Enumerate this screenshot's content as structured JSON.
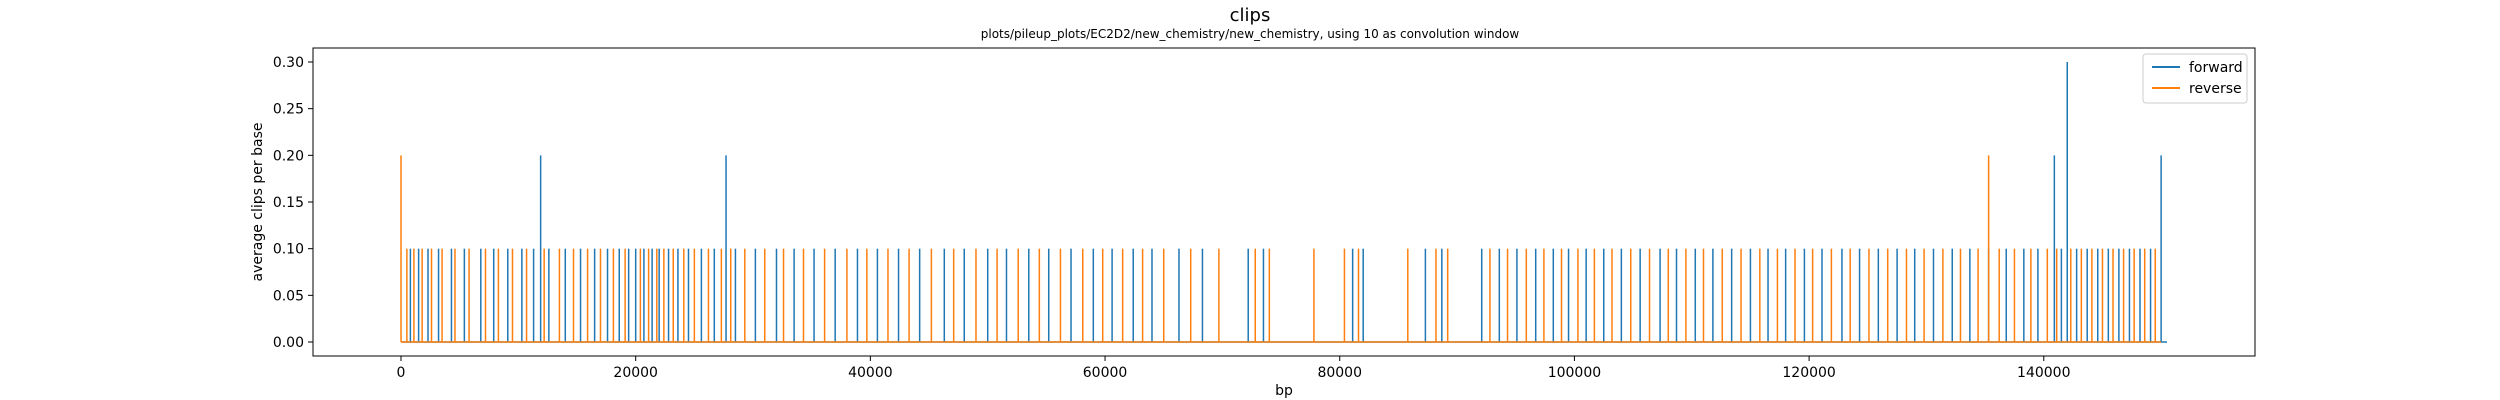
{
  "chart_data": {
    "type": "line",
    "title": "clips",
    "subtitle": "plots/pileup_plots/EC2D2/new_chemistry/new_chemistry, using 10 as convolution window",
    "xlabel": "bp",
    "ylabel": "average clips per base",
    "xlim": [
      -7500,
      158000
    ],
    "ylim": [
      -0.015,
      0.315
    ],
    "xticks": [
      0,
      20000,
      40000,
      60000,
      80000,
      100000,
      120000,
      140000
    ],
    "yticks": [
      0.0,
      0.05,
      0.1,
      0.15,
      0.2,
      0.25,
      0.3
    ],
    "ytick_labels": [
      "0.00",
      "0.05",
      "0.10",
      "0.15",
      "0.20",
      "0.25",
      "0.30"
    ],
    "legend_position": "top-right",
    "colors": {
      "forward": "#1f77b4",
      "reverse": "#ff7f0e"
    },
    "series": [
      {
        "name": "forward",
        "x_range": [
          0,
          150500
        ],
        "spikes": [
          {
            "x": 800,
            "y": 0.1
          },
          {
            "x": 1500,
            "y": 0.1
          },
          {
            "x": 2300,
            "y": 0.1
          },
          {
            "x": 3200,
            "y": 0.1
          },
          {
            "x": 4300,
            "y": 0.1
          },
          {
            "x": 5400,
            "y": 0.1
          },
          {
            "x": 6800,
            "y": 0.1
          },
          {
            "x": 7900,
            "y": 0.1
          },
          {
            "x": 9100,
            "y": 0.1
          },
          {
            "x": 10300,
            "y": 0.1
          },
          {
            "x": 11300,
            "y": 0.1
          },
          {
            "x": 11900,
            "y": 0.2
          },
          {
            "x": 12600,
            "y": 0.1
          },
          {
            "x": 14000,
            "y": 0.1
          },
          {
            "x": 15300,
            "y": 0.1
          },
          {
            "x": 16500,
            "y": 0.1
          },
          {
            "x": 17600,
            "y": 0.1
          },
          {
            "x": 18600,
            "y": 0.1
          },
          {
            "x": 19400,
            "y": 0.1
          },
          {
            "x": 20000,
            "y": 0.1
          },
          {
            "x": 20700,
            "y": 0.1
          },
          {
            "x": 21400,
            "y": 0.1
          },
          {
            "x": 22000,
            "y": 0.1
          },
          {
            "x": 22800,
            "y": 0.1
          },
          {
            "x": 23600,
            "y": 0.1
          },
          {
            "x": 24500,
            "y": 0.1
          },
          {
            "x": 25600,
            "y": 0.1
          },
          {
            "x": 26700,
            "y": 0.1
          },
          {
            "x": 27700,
            "y": 0.2
          },
          {
            "x": 28500,
            "y": 0.1
          },
          {
            "x": 30200,
            "y": 0.1
          },
          {
            "x": 32000,
            "y": 0.1
          },
          {
            "x": 33500,
            "y": 0.1
          },
          {
            "x": 35200,
            "y": 0.1
          },
          {
            "x": 37000,
            "y": 0.1
          },
          {
            "x": 38900,
            "y": 0.1
          },
          {
            "x": 40600,
            "y": 0.1
          },
          {
            "x": 42400,
            "y": 0.1
          },
          {
            "x": 44200,
            "y": 0.1
          },
          {
            "x": 46300,
            "y": 0.1
          },
          {
            "x": 48000,
            "y": 0.1
          },
          {
            "x": 50000,
            "y": 0.1
          },
          {
            "x": 51600,
            "y": 0.1
          },
          {
            "x": 53500,
            "y": 0.1
          },
          {
            "x": 55200,
            "y": 0.1
          },
          {
            "x": 57100,
            "y": 0.1
          },
          {
            "x": 59000,
            "y": 0.1
          },
          {
            "x": 60600,
            "y": 0.1
          },
          {
            "x": 62400,
            "y": 0.1
          },
          {
            "x": 64000,
            "y": 0.1
          },
          {
            "x": 66300,
            "y": 0.1
          },
          {
            "x": 68300,
            "y": 0.1
          },
          {
            "x": 72200,
            "y": 0.1
          },
          {
            "x": 73500,
            "y": 0.1
          },
          {
            "x": 81100,
            "y": 0.1
          },
          {
            "x": 82000,
            "y": 0.1
          },
          {
            "x": 87300,
            "y": 0.1
          },
          {
            "x": 88700,
            "y": 0.1
          },
          {
            "x": 92100,
            "y": 0.1
          },
          {
            "x": 93600,
            "y": 0.1
          },
          {
            "x": 95100,
            "y": 0.1
          },
          {
            "x": 96700,
            "y": 0.1
          },
          {
            "x": 98200,
            "y": 0.1
          },
          {
            "x": 99500,
            "y": 0.1
          },
          {
            "x": 101000,
            "y": 0.1
          },
          {
            "x": 102500,
            "y": 0.1
          },
          {
            "x": 104000,
            "y": 0.1
          },
          {
            "x": 105600,
            "y": 0.1
          },
          {
            "x": 107300,
            "y": 0.1
          },
          {
            "x": 108700,
            "y": 0.1
          },
          {
            "x": 110300,
            "y": 0.1
          },
          {
            "x": 111800,
            "y": 0.1
          },
          {
            "x": 113400,
            "y": 0.1
          },
          {
            "x": 115000,
            "y": 0.1
          },
          {
            "x": 116500,
            "y": 0.1
          },
          {
            "x": 118000,
            "y": 0.1
          },
          {
            "x": 119600,
            "y": 0.1
          },
          {
            "x": 121100,
            "y": 0.1
          },
          {
            "x": 122800,
            "y": 0.1
          },
          {
            "x": 124300,
            "y": 0.1
          },
          {
            "x": 125900,
            "y": 0.1
          },
          {
            "x": 127500,
            "y": 0.1
          },
          {
            "x": 129000,
            "y": 0.1
          },
          {
            "x": 130600,
            "y": 0.1
          },
          {
            "x": 132200,
            "y": 0.1
          },
          {
            "x": 133700,
            "y": 0.1
          },
          {
            "x": 135300,
            "y": 0.1
          },
          {
            "x": 136800,
            "y": 0.1
          },
          {
            "x": 138300,
            "y": 0.1
          },
          {
            "x": 139500,
            "y": 0.1
          },
          {
            "x": 140900,
            "y": 0.2
          },
          {
            "x": 141500,
            "y": 0.1
          },
          {
            "x": 142000,
            "y": 0.3
          },
          {
            "x": 142800,
            "y": 0.1
          },
          {
            "x": 143700,
            "y": 0.1
          },
          {
            "x": 144600,
            "y": 0.1
          },
          {
            "x": 145500,
            "y": 0.1
          },
          {
            "x": 146400,
            "y": 0.1
          },
          {
            "x": 147300,
            "y": 0.1
          },
          {
            "x": 148200,
            "y": 0.1
          },
          {
            "x": 149100,
            "y": 0.1
          },
          {
            "x": 150000,
            "y": 0.2
          }
        ]
      },
      {
        "name": "reverse",
        "x_range": [
          0,
          150000
        ],
        "spikes": [
          {
            "x": 0,
            "y": 0.2
          },
          {
            "x": 500,
            "y": 0.1
          },
          {
            "x": 1100,
            "y": 0.1
          },
          {
            "x": 1800,
            "y": 0.1
          },
          {
            "x": 2600,
            "y": 0.1
          },
          {
            "x": 3500,
            "y": 0.1
          },
          {
            "x": 4600,
            "y": 0.1
          },
          {
            "x": 5800,
            "y": 0.1
          },
          {
            "x": 7200,
            "y": 0.1
          },
          {
            "x": 8300,
            "y": 0.1
          },
          {
            "x": 9500,
            "y": 0.1
          },
          {
            "x": 10700,
            "y": 0.1
          },
          {
            "x": 12200,
            "y": 0.1
          },
          {
            "x": 13500,
            "y": 0.1
          },
          {
            "x": 14700,
            "y": 0.1
          },
          {
            "x": 15900,
            "y": 0.1
          },
          {
            "x": 17000,
            "y": 0.1
          },
          {
            "x": 18100,
            "y": 0.1
          },
          {
            "x": 19100,
            "y": 0.1
          },
          {
            "x": 20400,
            "y": 0.1
          },
          {
            "x": 21100,
            "y": 0.1
          },
          {
            "x": 21800,
            "y": 0.1
          },
          {
            "x": 22400,
            "y": 0.1
          },
          {
            "x": 23200,
            "y": 0.1
          },
          {
            "x": 24100,
            "y": 0.1
          },
          {
            "x": 25000,
            "y": 0.1
          },
          {
            "x": 26200,
            "y": 0.1
          },
          {
            "x": 27300,
            "y": 0.1
          },
          {
            "x": 28100,
            "y": 0.1
          },
          {
            "x": 29300,
            "y": 0.1
          },
          {
            "x": 31000,
            "y": 0.1
          },
          {
            "x": 32600,
            "y": 0.1
          },
          {
            "x": 34300,
            "y": 0.1
          },
          {
            "x": 36100,
            "y": 0.1
          },
          {
            "x": 38000,
            "y": 0.1
          },
          {
            "x": 39700,
            "y": 0.1
          },
          {
            "x": 41500,
            "y": 0.1
          },
          {
            "x": 43300,
            "y": 0.1
          },
          {
            "x": 45200,
            "y": 0.1
          },
          {
            "x": 47100,
            "y": 0.1
          },
          {
            "x": 49000,
            "y": 0.1
          },
          {
            "x": 50800,
            "y": 0.1
          },
          {
            "x": 52600,
            "y": 0.1
          },
          {
            "x": 54400,
            "y": 0.1
          },
          {
            "x": 56200,
            "y": 0.1
          },
          {
            "x": 58100,
            "y": 0.1
          },
          {
            "x": 59800,
            "y": 0.1
          },
          {
            "x": 61500,
            "y": 0.1
          },
          {
            "x": 63200,
            "y": 0.1
          },
          {
            "x": 65000,
            "y": 0.1
          },
          {
            "x": 67300,
            "y": 0.1
          },
          {
            "x": 69700,
            "y": 0.1
          },
          {
            "x": 72800,
            "y": 0.1
          },
          {
            "x": 74000,
            "y": 0.1
          },
          {
            "x": 77800,
            "y": 0.1
          },
          {
            "x": 80400,
            "y": 0.1
          },
          {
            "x": 81600,
            "y": 0.1
          },
          {
            "x": 85800,
            "y": 0.1
          },
          {
            "x": 88200,
            "y": 0.1
          },
          {
            "x": 89200,
            "y": 0.1
          },
          {
            "x": 92800,
            "y": 0.1
          },
          {
            "x": 94300,
            "y": 0.1
          },
          {
            "x": 95900,
            "y": 0.1
          },
          {
            "x": 97400,
            "y": 0.1
          },
          {
            "x": 98900,
            "y": 0.1
          },
          {
            "x": 100300,
            "y": 0.1
          },
          {
            "x": 101700,
            "y": 0.1
          },
          {
            "x": 103200,
            "y": 0.1
          },
          {
            "x": 104800,
            "y": 0.1
          },
          {
            "x": 106400,
            "y": 0.1
          },
          {
            "x": 108000,
            "y": 0.1
          },
          {
            "x": 109500,
            "y": 0.1
          },
          {
            "x": 111000,
            "y": 0.1
          },
          {
            "x": 112600,
            "y": 0.1
          },
          {
            "x": 114200,
            "y": 0.1
          },
          {
            "x": 115800,
            "y": 0.1
          },
          {
            "x": 117300,
            "y": 0.1
          },
          {
            "x": 118800,
            "y": 0.1
          },
          {
            "x": 120300,
            "y": 0.1
          },
          {
            "x": 121900,
            "y": 0.1
          },
          {
            "x": 123500,
            "y": 0.1
          },
          {
            "x": 125100,
            "y": 0.1
          },
          {
            "x": 126700,
            "y": 0.1
          },
          {
            "x": 128300,
            "y": 0.1
          },
          {
            "x": 129800,
            "y": 0.1
          },
          {
            "x": 131400,
            "y": 0.1
          },
          {
            "x": 132900,
            "y": 0.1
          },
          {
            "x": 134400,
            "y": 0.1
          },
          {
            "x": 135300,
            "y": 0.2
          },
          {
            "x": 136200,
            "y": 0.1
          },
          {
            "x": 137500,
            "y": 0.1
          },
          {
            "x": 138900,
            "y": 0.1
          },
          {
            "x": 140300,
            "y": 0.1
          },
          {
            "x": 141100,
            "y": 0.1
          },
          {
            "x": 142300,
            "y": 0.1
          },
          {
            "x": 143200,
            "y": 0.1
          },
          {
            "x": 144100,
            "y": 0.1
          },
          {
            "x": 145000,
            "y": 0.1
          },
          {
            "x": 145900,
            "y": 0.1
          },
          {
            "x": 146800,
            "y": 0.1
          },
          {
            "x": 147700,
            "y": 0.1
          },
          {
            "x": 148600,
            "y": 0.1
          },
          {
            "x": 149500,
            "y": 0.1
          }
        ]
      }
    ]
  }
}
